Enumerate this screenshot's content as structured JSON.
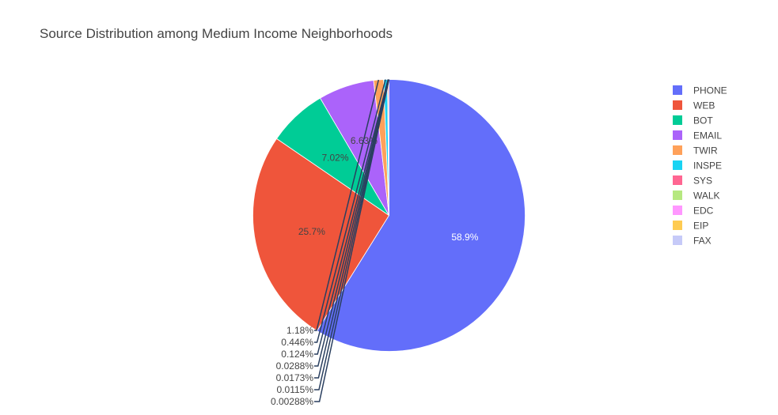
{
  "chart_data": {
    "type": "pie",
    "title": "Source Distribution among Medium Income Neighborhoods",
    "legend_position": "right",
    "slices": [
      {
        "label": "PHONE",
        "percent": 58.9,
        "display": "58.9%",
        "color": "#636efa",
        "text_color": "#ffffff"
      },
      {
        "label": "WEB",
        "percent": 25.7,
        "display": "25.7%",
        "color": "#ef553b",
        "text_color": "#444444"
      },
      {
        "label": "BOT",
        "percent": 7.02,
        "display": "7.02%",
        "color": "#00cc96",
        "text_color": "#444444"
      },
      {
        "label": "EMAIL",
        "percent": 6.63,
        "display": "6.63%",
        "color": "#ab63fa",
        "text_color": "#444444"
      },
      {
        "label": "TWIR",
        "percent": 1.18,
        "display": "1.18%",
        "color": "#ffa15a",
        "text_color": "#444444"
      },
      {
        "label": "INSPE",
        "percent": 0.446,
        "display": "0.446%",
        "color": "#19d3f3",
        "text_color": "#444444"
      },
      {
        "label": "SYS",
        "percent": 0.124,
        "display": "0.124%",
        "color": "#ff6692",
        "text_color": "#444444"
      },
      {
        "label": "WALK",
        "percent": 0.0288,
        "display": "0.0288%",
        "color": "#b6e880",
        "text_color": "#444444"
      },
      {
        "label": "EDC",
        "percent": 0.0173,
        "display": "0.0173%",
        "color": "#ff97ff",
        "text_color": "#444444"
      },
      {
        "label": "EIP",
        "percent": 0.0115,
        "display": "0.0115%",
        "color": "#fecb52",
        "text_color": "#444444"
      },
      {
        "label": "FAX",
        "percent": 0.00288,
        "display": "0.00288%",
        "color": "#c6caf8",
        "text_color": "#444444"
      }
    ]
  }
}
